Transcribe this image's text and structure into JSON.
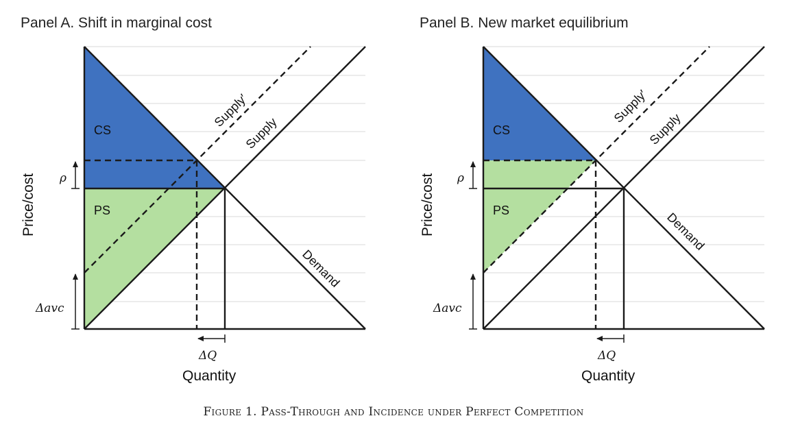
{
  "panel_a": {
    "title": "Panel A. Shift in marginal cost",
    "ylabel": "Price/cost",
    "xlabel": "Quantity",
    "cs_label": "CS",
    "ps_label": "PS",
    "supply_label": "Supply",
    "supply_shifted_label": "Supply′",
    "demand_label": "Demand",
    "rho_label": "ρ",
    "davc_label": "Δavc",
    "dq_label": "ΔQ"
  },
  "panel_b": {
    "title": "Panel B. New market equilibrium",
    "ylabel": "Price/cost",
    "xlabel": "Quantity",
    "cs_label": "CS",
    "ps_label": "PS",
    "supply_label": "Supply",
    "supply_shifted_label": "Supply′",
    "demand_label": "Demand",
    "rho_label": "ρ",
    "davc_label": "Δavc",
    "dq_label": "ΔQ"
  },
  "caption": "Figure 1. Pass-Through and Incidence under Perfect Competition",
  "colors": {
    "consumer_surplus": "#3f72c0",
    "producer_surplus": "#b4dfa0",
    "curves": "#1a1a1a",
    "grid": "#d9d9d9"
  }
}
